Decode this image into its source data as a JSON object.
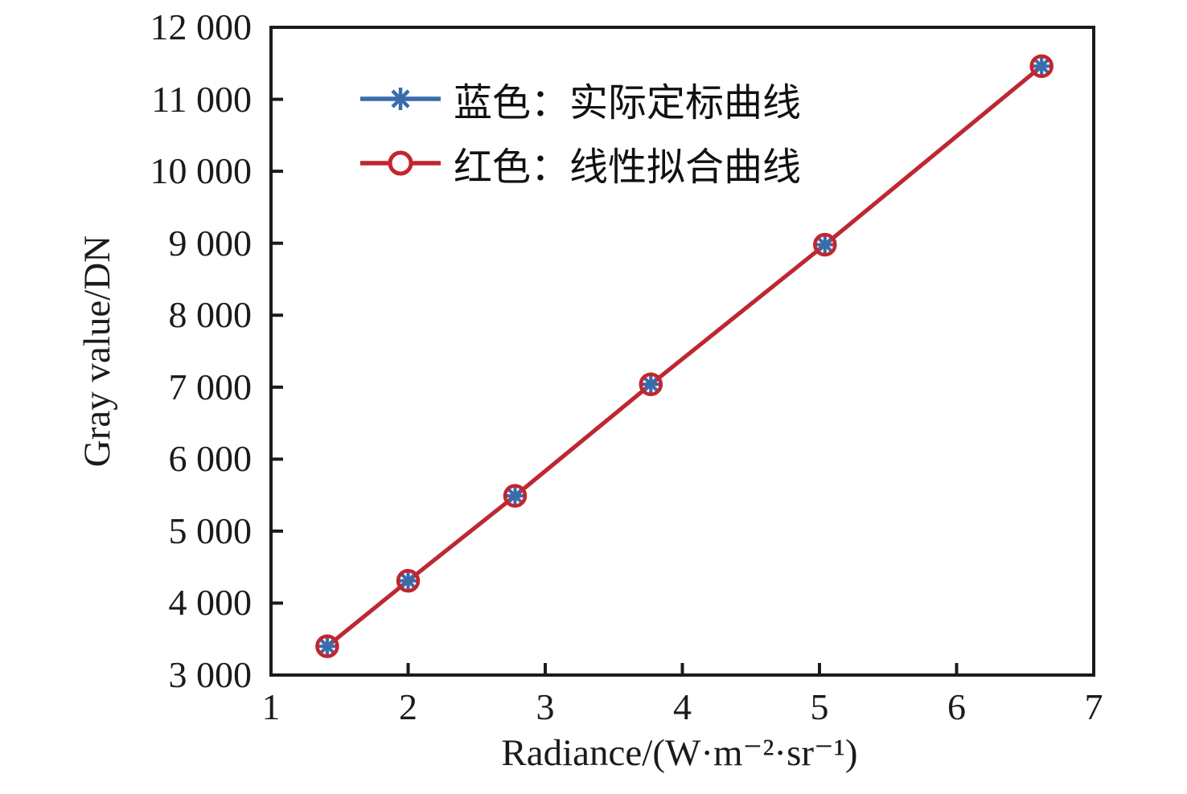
{
  "figure": {
    "background": "#ffffff",
    "axes_color": "#1b1b1b"
  },
  "chart_data": {
    "type": "line",
    "title": "",
    "xlabel": "Radiance/(W·m⁻²·sr⁻¹)",
    "ylabel": "Gray value/DN",
    "xlim": [
      1,
      7
    ],
    "ylim": [
      3000,
      12000
    ],
    "grid": false,
    "x_ticks": [
      1,
      2,
      3,
      4,
      5,
      6,
      7
    ],
    "x_tick_labels": [
      "1",
      "2",
      "3",
      "4",
      "5",
      "6",
      "7"
    ],
    "y_ticks": [
      3000,
      4000,
      5000,
      6000,
      7000,
      8000,
      9000,
      10000,
      11000,
      12000
    ],
    "y_tick_labels": [
      "3 000",
      "4 000",
      "5 000",
      "6 000",
      "7 000",
      "8 000",
      "9 000",
      "10 000",
      "11 000",
      "12 000"
    ],
    "legend": {
      "position": "upper-left-inside",
      "frame": false
    },
    "x": [
      1.41,
      2.0,
      2.78,
      3.77,
      5.04,
      6.62
    ],
    "series": [
      {
        "name": "蓝色：实际定标曲线",
        "color": "#3a6cac",
        "marker": "asterisk",
        "values": [
          3400,
          4310,
          5490,
          7040,
          8980,
          11460
        ]
      },
      {
        "name": "红色：线性拟合曲线",
        "color": "#c2262e",
        "marker": "circle-open",
        "values": [
          3400,
          4310,
          5490,
          7040,
          8980,
          11460
        ]
      }
    ]
  }
}
